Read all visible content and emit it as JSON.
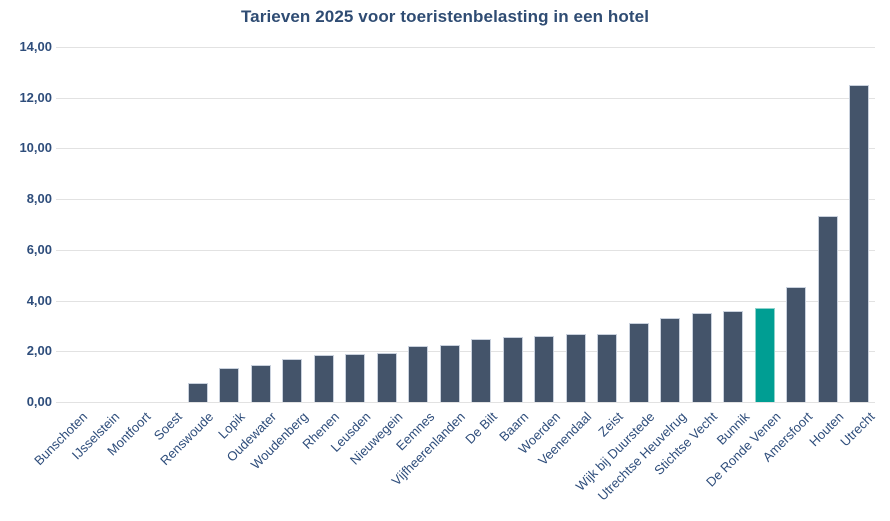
{
  "chart_data": {
    "type": "bar",
    "title": "Tarieven 2025 voor toeristenbelasting in een hotel",
    "categories": [
      "Bunschoten",
      "IJsselstein",
      "Montfoort",
      "Soest",
      "Renswoude",
      "Lopik",
      "Oudewater",
      "Woudenberg",
      "Rhenen",
      "Leusden",
      "Nieuwegein",
      "Eemnes",
      "Vijfheerenlanden",
      "De Bilt",
      "Baarn",
      "Woerden",
      "Veenendaal",
      "Zeist",
      "Wijk bij Duurstede",
      "Utrechtse Heuvelrug",
      "Stichtse Vecht",
      "Bunnik",
      "De Ronde Venen",
      "Amersfoort",
      "Houten",
      "Utrecht"
    ],
    "values": [
      0,
      0,
      0,
      0,
      0.75,
      1.35,
      1.45,
      1.7,
      1.85,
      1.9,
      1.95,
      2.2,
      2.25,
      2.5,
      2.55,
      2.6,
      2.7,
      2.7,
      3.1,
      3.3,
      3.5,
      3.6,
      3.7,
      4.55,
      7.35,
      12.5
    ],
    "highlight_category": "De Ronde Venen",
    "highlight_index": 22,
    "bar_color": "#44546a",
    "highlight_color": "#009e93",
    "xlabel": "",
    "ylabel": "",
    "ylim": [
      0,
      14
    ],
    "ytick_step": 2,
    "ytick_labels": [
      "0,00",
      "2,00",
      "4,00",
      "6,00",
      "8,00",
      "10,00",
      "12,00",
      "14,00"
    ],
    "grid": true,
    "legend": "none",
    "decimal_separator": ","
  }
}
